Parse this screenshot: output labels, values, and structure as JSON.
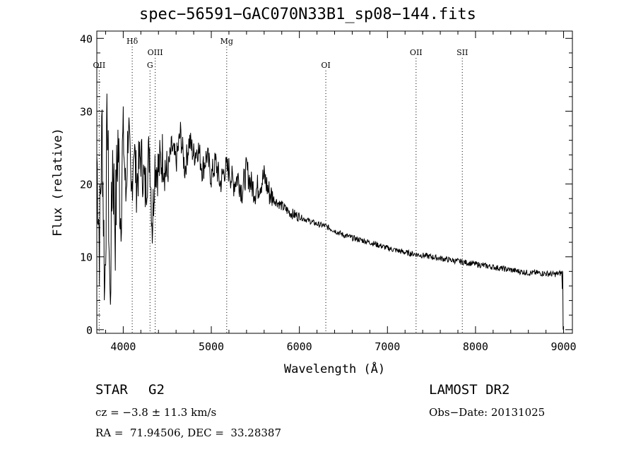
{
  "chart_data": {
    "type": "line",
    "title": "spec−56591−GAC070N33B1_sp08−144.fits",
    "xlabel": "Wavelength (Å)",
    "ylabel": "Flux (relative)",
    "xlim": [
      3700,
      9100
    ],
    "ylim": [
      -0.5,
      41
    ],
    "xticks": [
      4000,
      5000,
      6000,
      7000,
      8000,
      9000
    ],
    "yticks": [
      0,
      10,
      20,
      30,
      40
    ],
    "series": [
      {
        "x": [
          3700,
          3730,
          3760,
          3790,
          3820,
          3850,
          3880,
          3910,
          3940,
          3970,
          4000,
          4030,
          4060,
          4090,
          4120,
          4150,
          4200,
          4250,
          4300,
          4330,
          4360,
          4400,
          4450,
          4500,
          4550,
          4600,
          4650,
          4700,
          4750,
          4800,
          4850,
          4900,
          4950,
          5000,
          5050,
          5100,
          5150,
          5200,
          5250,
          5300,
          5350,
          5400,
          5450,
          5500,
          5550,
          5600,
          5650,
          5700,
          5800,
          5900,
          6000,
          6100,
          6200,
          6300,
          6400,
          6500,
          6600,
          6700,
          6800,
          6900,
          7000,
          7100,
          7200,
          7300,
          7400,
          7500,
          7600,
          7700,
          7800,
          7900,
          8000,
          8100,
          8200,
          8300,
          8400,
          8500,
          8600,
          8700,
          8800,
          8900,
          8980,
          9000
        ],
        "y": [
          24,
          12,
          28,
          5,
          30,
          3,
          24,
          14,
          26,
          16,
          27,
          18,
          29,
          17,
          26,
          20,
          24,
          19,
          25,
          14,
          23,
          22,
          24,
          21,
          25,
          23,
          27,
          22,
          26,
          24,
          25,
          22,
          24,
          21,
          23,
          20,
          22,
          22,
          20,
          21,
          19,
          22,
          20,
          19,
          20,
          21,
          19,
          18,
          17,
          16,
          15.5,
          15,
          14.5,
          14.2,
          13.6,
          13,
          12.6,
          12.3,
          12,
          11.6,
          11.2,
          10.9,
          10.6,
          10.4,
          10.2,
          10,
          9.8,
          9.6,
          9.4,
          9.2,
          9,
          8.8,
          8.6,
          8.4,
          8.2,
          8,
          7.8,
          7.8,
          7.7,
          7.6,
          7.8,
          0
        ]
      }
    ],
    "lines": [
      {
        "label": "OII",
        "x": 3727,
        "row": 3
      },
      {
        "label": "Hδ",
        "x": 4102,
        "row": 1
      },
      {
        "label": "OIII",
        "x": 4363,
        "row": 2
      },
      {
        "label": "G",
        "x": 4304,
        "row": 3
      },
      {
        "label": "Mg",
        "x": 5175,
        "row": 1
      },
      {
        "label": "OI",
        "x": 6300,
        "row": 3
      },
      {
        "label": "OII",
        "x": 7325,
        "row": 2
      },
      {
        "label": "SII",
        "x": 7850,
        "row": 2
      }
    ]
  },
  "info": {
    "class": "STAR",
    "subclass": "G2",
    "cz": "cz = −3.8 ± 11.3 km/s",
    "radec": "RA =  71.94506, DEC =  33.28387",
    "survey": "LAMOST DR2",
    "obsdate": "Obs−Date: 20131025"
  }
}
